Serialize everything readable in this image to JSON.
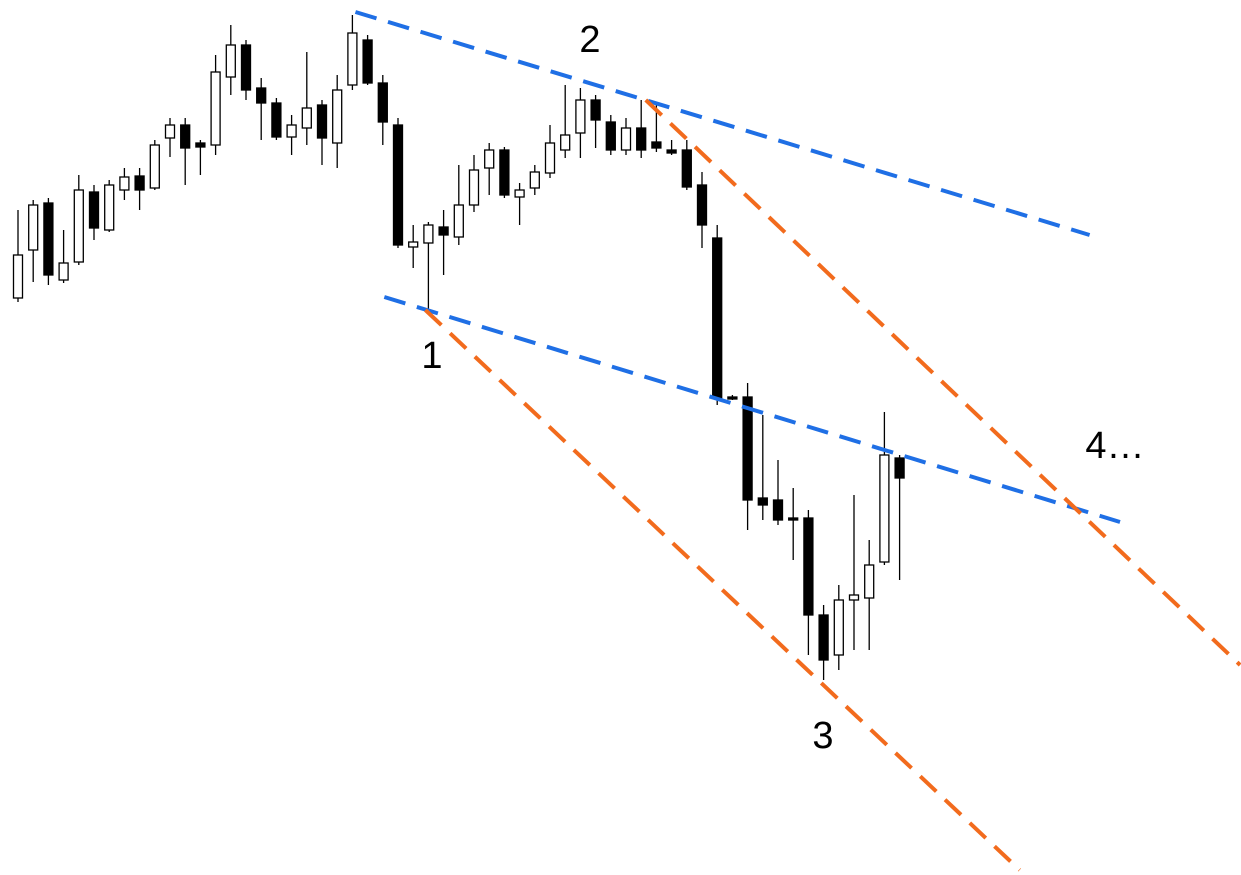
{
  "chart_data": {
    "type": "candlestick",
    "x": [
      0,
      1,
      2,
      3,
      4,
      5,
      6,
      7,
      8,
      9,
      10,
      11,
      12,
      13,
      14,
      15,
      16,
      17,
      18,
      19,
      20,
      21,
      22,
      23,
      24,
      25,
      26,
      27,
      28,
      29,
      30,
      31,
      32,
      33,
      34,
      35,
      36,
      37,
      38,
      39,
      40,
      41,
      42,
      43,
      44,
      45,
      46,
      47,
      48,
      49,
      50,
      51,
      52,
      53,
      54,
      55,
      56,
      57,
      58
    ],
    "open": [
      602,
      650,
      697,
      620,
      638,
      708,
      670,
      710,
      724,
      712,
      762,
      775,
      757,
      755,
      823,
      855,
      812,
      797,
      763,
      772,
      795,
      757,
      815,
      860,
      817,
      775,
      653,
      657,
      673,
      663,
      695,
      732,
      750,
      703,
      712,
      727,
      750,
      767,
      800,
      778,
      750,
      772,
      758,
      750,
      750,
      715,
      662,
      503,
      503,
      402,
      400,
      382,
      382,
      285,
      245,
      300,
      302,
      338,
      442
    ],
    "high": [
      690,
      700,
      702,
      670,
      725,
      715,
      720,
      732,
      732,
      760,
      782,
      782,
      760,
      845,
      875,
      860,
      822,
      802,
      785,
      848,
      800,
      825,
      885,
      865,
      825,
      782,
      675,
      678,
      690,
      735,
      745,
      757,
      753,
      717,
      735,
      775,
      815,
      812,
      805,
      785,
      782,
      800,
      795,
      760,
      760,
      728,
      675,
      505,
      517,
      485,
      440,
      412,
      390,
      295,
      315,
      405,
      360,
      488,
      445
    ],
    "low": [
      598,
      618,
      615,
      617,
      635,
      660,
      668,
      700,
      690,
      710,
      743,
      715,
      725,
      745,
      805,
      800,
      760,
      760,
      745,
      755,
      735,
      732,
      810,
      815,
      755,
      652,
      632,
      590,
      625,
      655,
      688,
      705,
      702,
      675,
      705,
      722,
      742,
      742,
      752,
      745,
      745,
      742,
      748,
      745,
      710,
      652,
      495,
      500,
      370,
      380,
      375,
      340,
      245,
      220,
      230,
      250,
      250,
      335,
      320
    ],
    "close": [
      645,
      695,
      625,
      637,
      710,
      672,
      715,
      723,
      710,
      755,
      775,
      752,
      753,
      828,
      855,
      810,
      797,
      763,
      775,
      792,
      762,
      810,
      867,
      817,
      778,
      655,
      658,
      675,
      665,
      695,
      730,
      750,
      705,
      710,
      728,
      757,
      765,
      800,
      780,
      750,
      772,
      750,
      752,
      747,
      713,
      675,
      502,
      501,
      400,
      395,
      380,
      380,
      285,
      240,
      300,
      305,
      335,
      445,
      422
    ],
    "up_color": "#ffffff",
    "down_color": "#000000",
    "ylim": [
      25,
      900
    ],
    "trendlines": [
      {
        "color": "#1f6fe5",
        "x": [
          22.2,
          70.5
        ],
        "y": [
          888,
          665
        ]
      },
      {
        "color": "#1f6fe5",
        "x": [
          24.1,
          72.5
        ],
        "y": [
          603,
          378
        ]
      },
      {
        "color": "#f26b1d",
        "x": [
          26.8,
          65.9
        ],
        "y": [
          590,
          30
        ]
      },
      {
        "color": "#f26b1d",
        "x": [
          41.3,
          80.4
        ],
        "y": [
          800,
          235
        ]
      }
    ],
    "annotations": [
      "1",
      "2",
      "3",
      "4…"
    ]
  }
}
